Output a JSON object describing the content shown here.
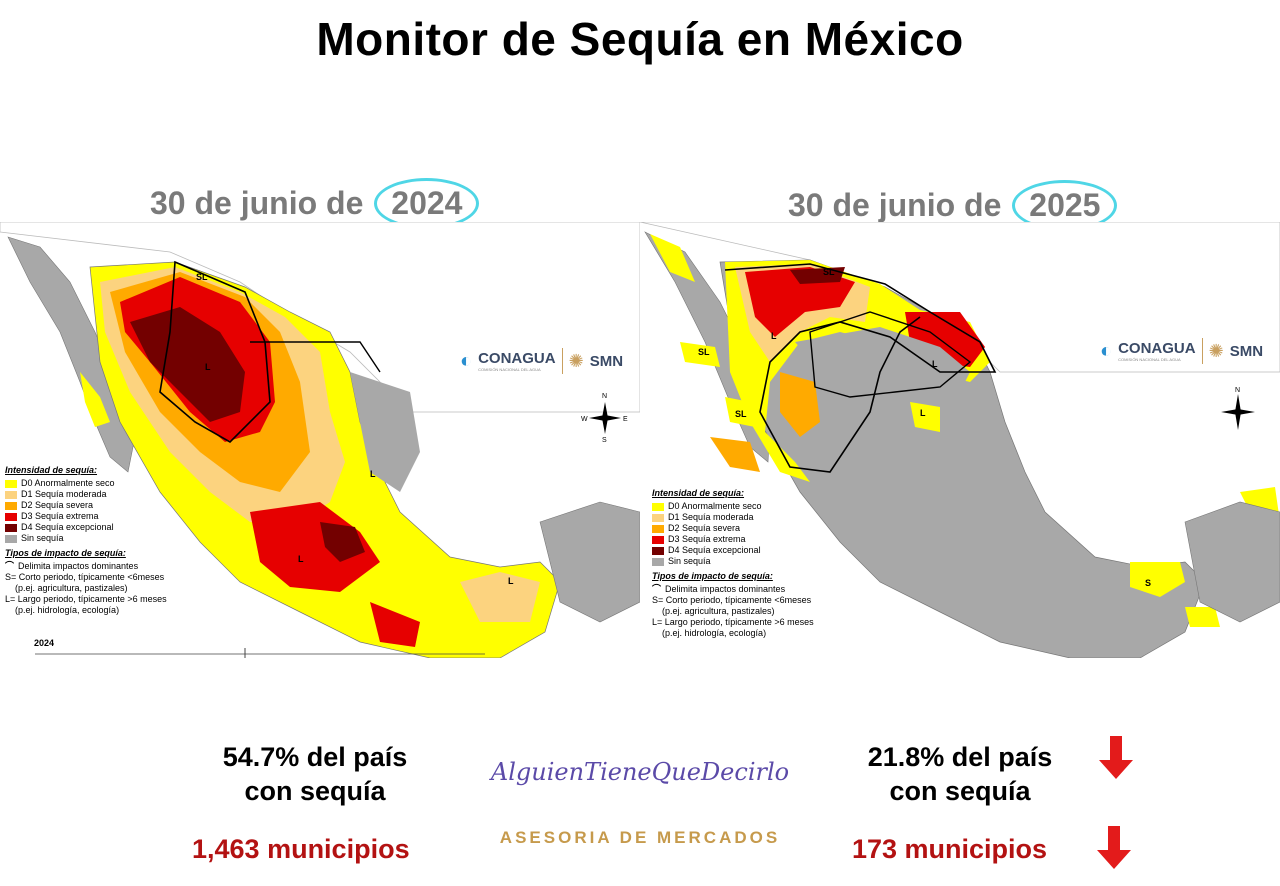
{
  "title": "Monitor de Sequía en México",
  "left": {
    "date_prefix": "30 de junio de",
    "year": "2024",
    "footer_year": "2024",
    "stat": "54.7% del país con sequía",
    "municipios": "1,463 municipios",
    "impact_labels": [
      "SL",
      "L",
      "L",
      "L",
      "L"
    ]
  },
  "right": {
    "date_prefix": "30 de junio de",
    "year": "2025",
    "stat": "21.8% del país con sequía",
    "municipios": "173 municipios",
    "impact_labels": [
      "SL",
      "L",
      "SL",
      "SL",
      "L",
      "L",
      "S"
    ]
  },
  "legend": {
    "title": "Intensidad de sequía:",
    "items": [
      {
        "label": "D0 Anormalmente seco",
        "color": "#ffff00"
      },
      {
        "label": "D1 Sequía moderada",
        "color": "#fcd37f"
      },
      {
        "label": "D2 Sequía severa",
        "color": "#ffaa00"
      },
      {
        "label": "D3 Sequía extrema",
        "color": "#e60000"
      },
      {
        "label": "D4 Sequía excepcional",
        "color": "#730000"
      },
      {
        "label": "Sin sequía",
        "color": "#a8a8a8"
      }
    ],
    "impact_title": "Tipos de impacto de sequía:",
    "impact_line": "Delimita impactos dominantes",
    "short_label": "S= Corto periodo, típicamente <6meses",
    "short_example": "(p.ej. agricultura, pastizales)",
    "long_label": "L= Largo periodo, típicamente >6 meses",
    "long_example": "(p.ej. hidrología, ecología)"
  },
  "logos": {
    "conagua": "CONAGUA",
    "conagua_sub": "COMISIÓN NACIONAL DEL AGUA",
    "smn": "SMN"
  },
  "compass": {
    "n": "N",
    "s": "S",
    "e": "E",
    "w": "W"
  },
  "brand": {
    "script": "AlguienTieneQueDecirlo",
    "subtitle": "ASESORIA DE MERCADOS"
  },
  "colors": {
    "down_arrow": "#e31b1b",
    "municipios_text": "#b31212",
    "highlight_circle": "#4fd6e6"
  }
}
